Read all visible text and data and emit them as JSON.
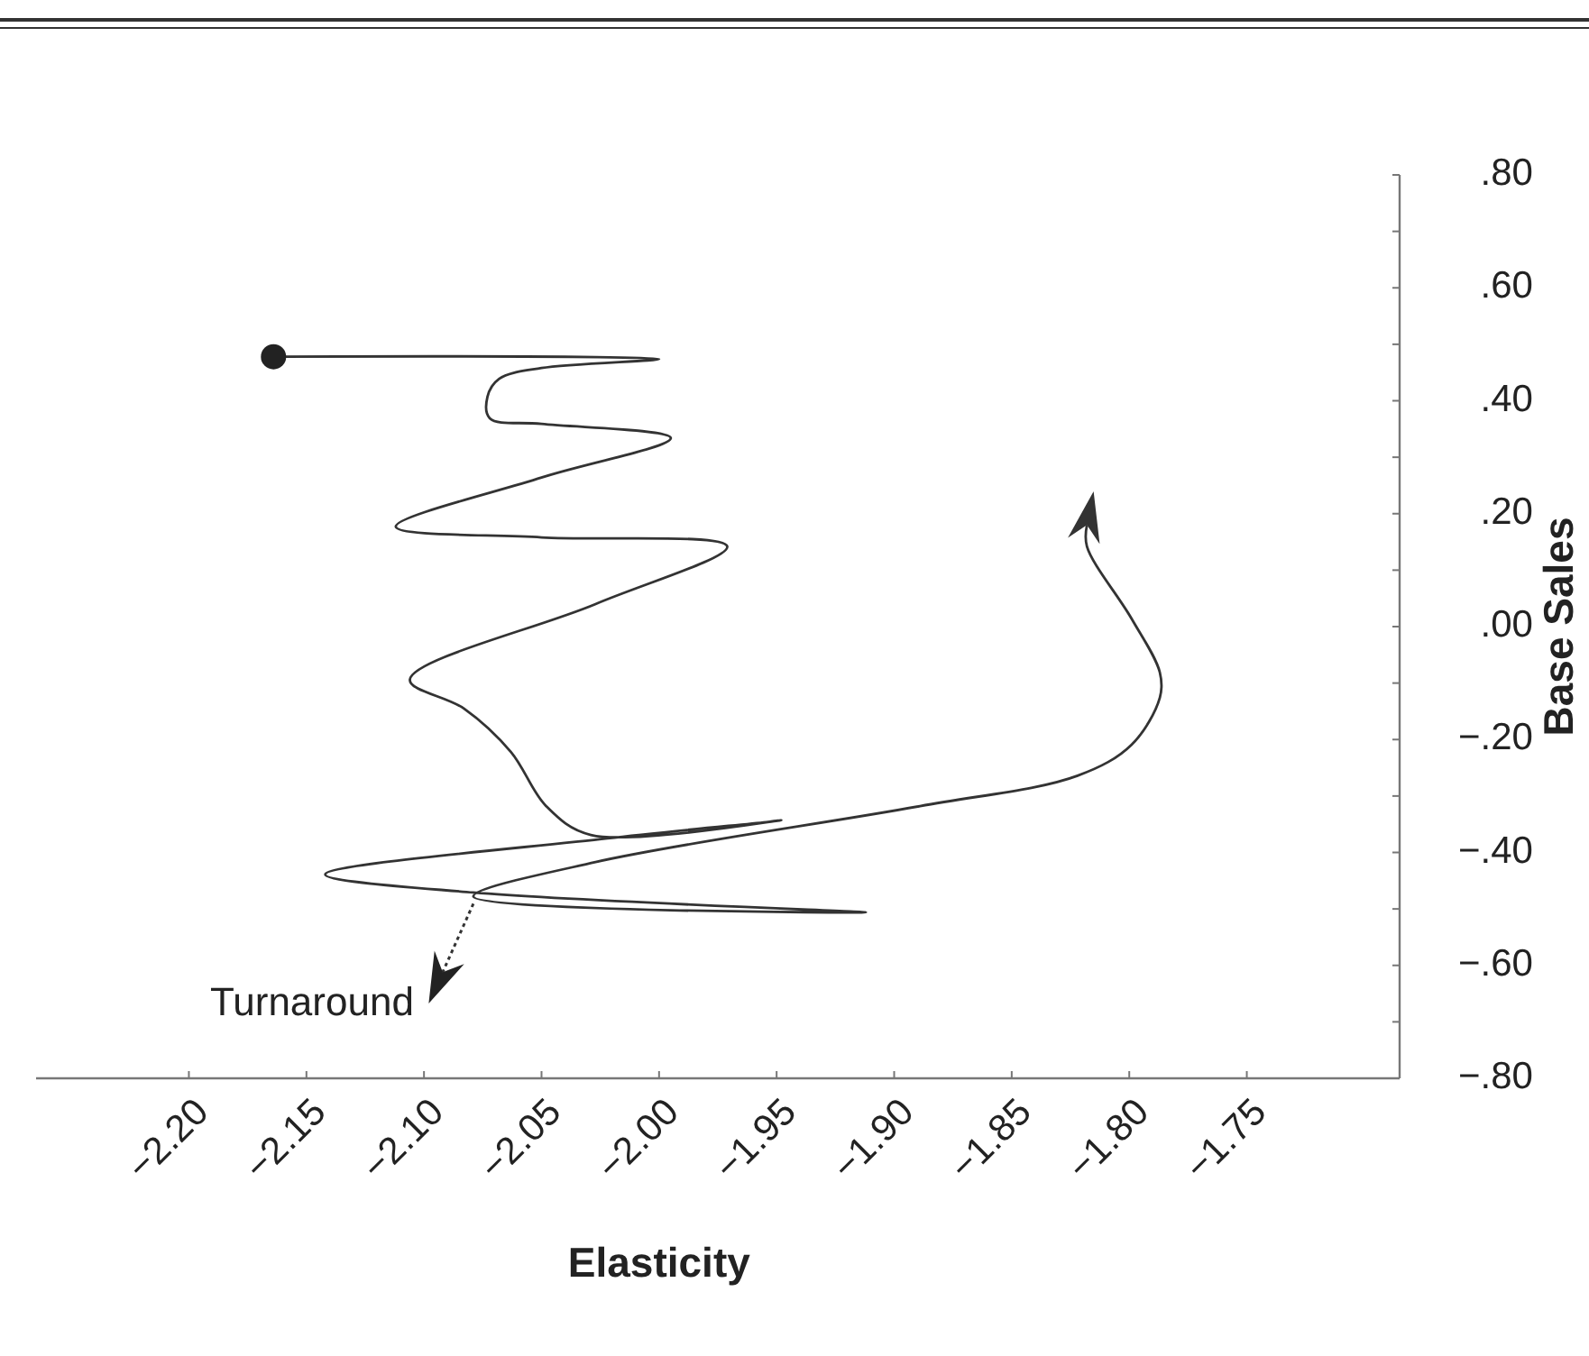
{
  "chart_data": {
    "type": "line",
    "xlabel": "Elasticity",
    "ylabel": "Base Sales",
    "xlim": [
      -2.265,
      -1.685
    ],
    "ylim": [
      -0.8,
      0.8
    ],
    "xticks": [
      {
        "value": -2.2,
        "label": "−2.20"
      },
      {
        "value": -2.15,
        "label": "−2.15"
      },
      {
        "value": -2.1,
        "label": "−2.10"
      },
      {
        "value": -2.05,
        "label": "−2.05"
      },
      {
        "value": -2.0,
        "label": "−2.00"
      },
      {
        "value": -1.95,
        "label": "−1.95"
      },
      {
        "value": -1.9,
        "label": "−1.90"
      },
      {
        "value": -1.85,
        "label": "−1.85"
      },
      {
        "value": -1.8,
        "label": "−1.80"
      },
      {
        "value": -1.75,
        "label": "−1.75"
      }
    ],
    "yticks": [
      {
        "value": -0.8,
        "label": "−.80"
      },
      {
        "value": -0.7,
        "label": null
      },
      {
        "value": -0.6,
        "label": "−.60"
      },
      {
        "value": -0.5,
        "label": null
      },
      {
        "value": -0.4,
        "label": "−.40"
      },
      {
        "value": -0.3,
        "label": null
      },
      {
        "value": -0.2,
        "label": "−.20"
      },
      {
        "value": -0.1,
        "label": null
      },
      {
        "value": 0,
        "label": ".00"
      },
      {
        "value": 0.1,
        "label": null
      },
      {
        "value": 0.2,
        "label": ".20"
      },
      {
        "value": 0.3,
        "label": null
      },
      {
        "value": 0.4,
        "label": ".40"
      },
      {
        "value": 0.5,
        "label": null
      },
      {
        "value": 0.6,
        "label": ".60"
      },
      {
        "value": 0.7,
        "label": null
      },
      {
        "value": 0.8,
        "label": ".80"
      }
    ],
    "grid": false,
    "annotations": [
      {
        "text": "Turnaround",
        "x": -2.079,
        "y": -0.478
      }
    ],
    "series": [
      {
        "color": "#333333",
        "marker": "none",
        "x": [
          -2.164,
          -2.0,
          -2.05,
          -2.068,
          -2.073,
          -2.072,
          -2.05,
          -1.995,
          -2.05,
          -2.112,
          -2.05,
          -1.971,
          -2.027,
          -2.106,
          -2.083,
          -2.063,
          -2.048,
          -2.029,
          -1.948,
          -2.022,
          -2.142,
          -2.079,
          -1.912,
          -2.079,
          -2.027,
          -1.889,
          -1.822,
          -1.799,
          -1.787,
          -1.787,
          -1.799,
          -1.818,
          -1.818
        ],
        "values": [
          0.478,
          0.474,
          0.458,
          0.439,
          0.407,
          0.369,
          0.359,
          0.334,
          0.264,
          0.177,
          0.158,
          0.142,
          0.04,
          -0.094,
          -0.145,
          -0.222,
          -0.318,
          -0.369,
          -0.343,
          -0.375,
          -0.439,
          -0.471,
          -0.506,
          -0.478,
          -0.417,
          -0.318,
          -0.264,
          -0.209,
          -0.126,
          -0.081,
          0.014,
          0.142,
          0.18
        ]
      },
      {
        "type": "scatter",
        "color": "#222222",
        "marker": "circle",
        "x": [
          -2.164
        ],
        "values": [
          0.478
        ]
      }
    ]
  }
}
